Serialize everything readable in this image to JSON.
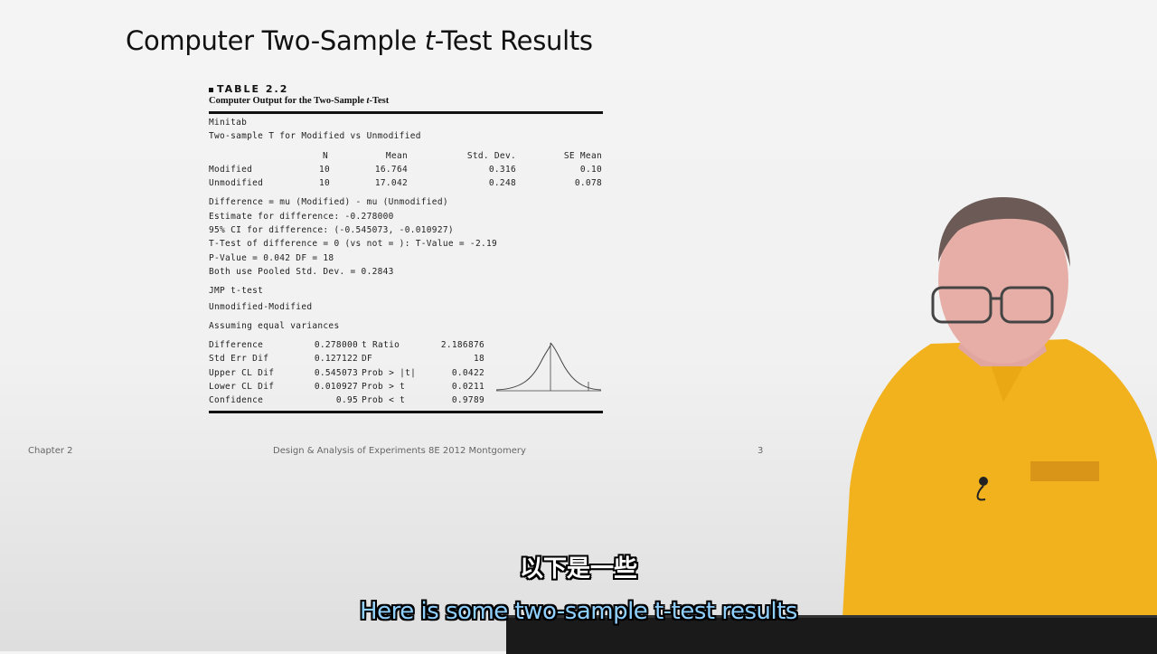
{
  "slide": {
    "title_main": "Computer Two-Sample ",
    "title_t": "t",
    "title_rest": "-Test Results"
  },
  "table": {
    "label": "TABLE 2.2",
    "caption_main": "Computer Output for the Two-Sample ",
    "caption_t": "t",
    "caption_end": "-Test",
    "minitab": {
      "heading": "Minitab",
      "subheading": "Two-sample T for Modified vs Unmodified",
      "columns": [
        "N",
        "Mean",
        "Std. Dev.",
        "SE Mean"
      ],
      "rows": [
        {
          "name": "Modified",
          "n": "10",
          "mean": "16.764",
          "sd": "0.316",
          "se": "0.10"
        },
        {
          "name": "Unmodified",
          "n": "10",
          "mean": "17.042",
          "sd": "0.248",
          "se": "0.078"
        }
      ],
      "lines": [
        "Difference = mu (Modified) - mu (Unmodified)",
        "Estimate for difference: -0.278000",
        "95% CI for difference: (-0.545073, -0.010927)",
        "T-Test of difference = 0 (vs not = ): T-Value = -2.19",
        "P-Value = 0.042 DF = 18",
        "Both use Pooled Std. Dev. = 0.2843"
      ]
    },
    "jmp": {
      "heading": "JMP t-test",
      "comparison": "Unmodified-Modified",
      "assumption": "Assuming equal variances",
      "rows": [
        {
          "label": "Difference",
          "value": "0.278000",
          "stat": "t Ratio",
          "stat_value": "2.186876"
        },
        {
          "label": "Std Err Dif",
          "value": "0.127122",
          "stat": "DF",
          "stat_value": "18"
        },
        {
          "label": "Upper CL Dif",
          "value": "0.545073",
          "stat": "Prob > |t|",
          "stat_value": "0.0422"
        },
        {
          "label": "Lower CL Dif",
          "value": "0.010927",
          "stat": "Prob > t",
          "stat_value": "0.0211"
        },
        {
          "label": "Confidence",
          "value": "0.95",
          "stat": "Prob < t",
          "stat_value": "0.9789"
        }
      ]
    }
  },
  "footer": {
    "chapter": "Chapter 2",
    "book": "Design & Analysis of Experiments 8E 2012 Montgomery",
    "page": "3"
  },
  "subtitles": {
    "zh": "以下是一些",
    "en": "Here is some two-sample t-test results"
  },
  "colors": {
    "subtitle_en": "#8fd0ff",
    "shirt": "#f2b21e"
  }
}
